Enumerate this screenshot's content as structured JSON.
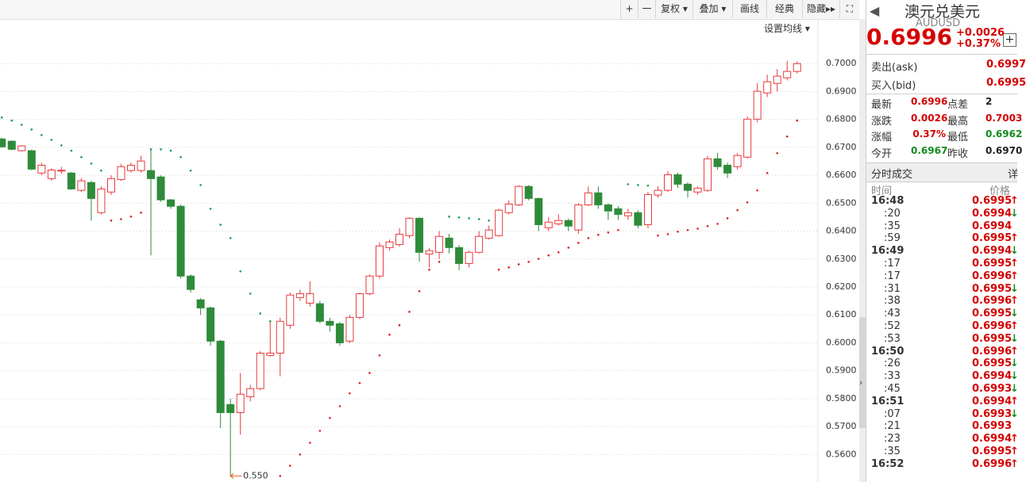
{
  "toolbar": {
    "buttons": [
      "+",
      "一",
      "复权",
      "叠加",
      "画线",
      "经典",
      "隐藏"
    ],
    "ma_setting": "设置均线"
  },
  "chart_data": {
    "type": "candlestick",
    "categories": [
      null,
      null,
      null,
      null,
      null,
      null,
      null,
      null,
      null,
      null,
      null,
      null,
      null,
      null,
      null,
      null,
      null,
      null,
      null,
      null,
      null,
      null,
      null,
      null,
      null,
      null,
      null,
      null,
      null,
      null,
      null,
      null,
      null,
      null,
      null,
      null,
      null,
      null,
      null,
      null,
      null,
      null,
      null,
      null,
      null,
      null,
      null,
      null,
      null,
      null,
      null,
      null,
      null,
      null,
      null,
      null,
      null,
      null,
      null,
      null,
      null,
      null,
      null,
      null,
      null,
      null,
      null,
      null,
      null,
      null,
      null,
      null,
      null,
      null,
      null,
      null,
      null,
      null,
      null,
      null,
      null
    ],
    "open": [
      0.673,
      0.6722,
      0.6688,
      0.6688,
      0.6608,
      0.6588,
      0.6617,
      0.6608,
      0.6546,
      0.6574,
      0.6466,
      0.654,
      0.6585,
      0.6617,
      0.6617,
      0.6617,
      0.6594,
      0.6512,
      0.6489,
      0.6239,
      0.6154,
      0.6125,
      0.6006,
      0.5779,
      0.575,
      0.5807,
      0.5836,
      0.5955,
      0.5963,
      0.6063,
      0.6162,
      0.6142,
      0.614,
      0.6077,
      0.6068,
      0.6006,
      0.6091,
      0.6176,
      0.6239,
      0.6341,
      0.6352,
      0.6384,
      0.6446,
      0.6318,
      0.6324,
      0.6375,
      0.6341,
      0.6284,
      0.6324,
      0.6375,
      0.6384,
      0.6466,
      0.6494,
      0.656,
      0.6517,
      0.6412,
      0.6426,
      0.6438,
      0.6404,
      0.6494,
      0.6537,
      0.6494,
      0.648,
      0.6455,
      0.6466,
      0.6423,
      0.6529,
      0.6546,
      0.6602,
      0.6568,
      0.654,
      0.6546,
      0.6659,
      0.6636,
      0.6631,
      0.6665,
      0.6801,
      0.6895,
      0.6929,
      0.6949,
      0.6972
    ],
    "high": [
      0.6735,
      0.6725,
      0.6708,
      0.6692,
      0.6645,
      0.6625,
      0.663,
      0.6612,
      0.659,
      0.658,
      0.656,
      0.66,
      0.664,
      0.6645,
      0.667,
      0.6696,
      0.66,
      0.6515,
      0.6495,
      0.6245,
      0.616,
      0.613,
      0.601,
      0.58,
      0.5892,
      0.585,
      0.597,
      0.608,
      0.609,
      0.618,
      0.619,
      0.622,
      0.615,
      0.609,
      0.6075,
      0.61,
      0.618,
      0.6245,
      0.636,
      0.637,
      0.641,
      0.645,
      0.645,
      0.634,
      0.64,
      0.639,
      0.635,
      0.633,
      0.64,
      0.642,
      0.648,
      0.651,
      0.6565,
      0.6565,
      0.652,
      0.645,
      0.646,
      0.6445,
      0.65,
      0.656,
      0.656,
      0.65,
      0.649,
      0.648,
      0.6475,
      0.654,
      0.656,
      0.6615,
      0.661,
      0.6575,
      0.656,
      0.667,
      0.668,
      0.6645,
      0.668,
      0.681,
      0.693,
      0.696,
      0.698,
      0.701,
      0.7008
    ],
    "low": [
      0.6698,
      0.669,
      0.6685,
      0.6618,
      0.66,
      0.658,
      0.6605,
      0.6548,
      0.654,
      0.6438,
      0.646,
      0.653,
      0.658,
      0.661,
      0.661,
      0.6313,
      0.6505,
      0.648,
      0.623,
      0.618,
      0.61,
      0.599,
      0.5694,
      0.5523,
      0.5671,
      0.579,
      0.583,
      0.595,
      0.588,
      0.605,
      0.615,
      0.613,
      0.607,
      0.604,
      0.599,
      0.6,
      0.6085,
      0.617,
      0.623,
      0.633,
      0.6345,
      0.6375,
      0.629,
      0.627,
      0.63,
      0.632,
      0.626,
      0.627,
      0.632,
      0.637,
      0.638,
      0.646,
      0.649,
      0.651,
      0.64,
      0.64,
      0.642,
      0.64,
      0.639,
      0.649,
      0.648,
      0.644,
      0.644,
      0.644,
      0.641,
      0.641,
      0.652,
      0.654,
      0.6555,
      0.652,
      0.653,
      0.654,
      0.662,
      0.659,
      0.662,
      0.666,
      0.679,
      0.688,
      0.69,
      0.694,
      0.6965
    ],
    "close": [
      0.6702,
      0.6693,
      0.6705,
      0.6622,
      0.6636,
      0.6619,
      0.6618,
      0.6551,
      0.658,
      0.6517,
      0.6551,
      0.6588,
      0.6631,
      0.6636,
      0.6651,
      0.6588,
      0.6512,
      0.6489,
      0.6239,
      0.6191,
      0.6125,
      0.6006,
      0.575,
      0.575,
      0.5816,
      0.5836,
      0.5963,
      0.5963,
      0.6077,
      0.6171,
      0.6176,
      0.6176,
      0.6077,
      0.6063,
      0.6,
      0.6091,
      0.6176,
      0.6239,
      0.6347,
      0.6361,
      0.6389,
      0.6446,
      0.6324,
      0.633,
      0.6381,
      0.6341,
      0.6284,
      0.6324,
      0.6381,
      0.6404,
      0.6475,
      0.6497,
      0.656,
      0.6517,
      0.6423,
      0.6432,
      0.6438,
      0.6418,
      0.6494,
      0.6537,
      0.6494,
      0.6472,
      0.646,
      0.6466,
      0.6421,
      0.6531,
      0.6546,
      0.6602,
      0.6568,
      0.6546,
      0.6554,
      0.6659,
      0.6631,
      0.6608,
      0.6671,
      0.6801,
      0.6901,
      0.6935,
      0.6955,
      0.6972,
      0.7
    ],
    "sar": [
      0.6807,
      0.6796,
      0.6781,
      0.6764,
      0.6744,
      0.6727,
      0.6707,
      0.6688,
      0.6665,
      0.6642,
      0.6617,
      0.6438,
      0.6443,
      0.6452,
      0.6466,
      0.6693,
      0.6693,
      0.6688,
      0.6665,
      0.6617,
      0.6565,
      0.648,
      0.6423,
      0.6375,
      0.6256,
      0.6176,
      0.6105,
      0.6077,
      0.5523,
      0.556,
      0.56,
      0.5642,
      0.5685,
      0.5731,
      0.5773,
      0.5819,
      0.5856,
      0.5892,
      0.5955,
      0.6029,
      0.6063,
      0.6111,
      0.6185,
      0.6262,
      0.629,
      0.6452,
      0.6449,
      0.6446,
      0.6443,
      0.6438,
      0.6262,
      0.627,
      0.6281,
      0.629,
      0.6301,
      0.6313,
      0.6324,
      0.6341,
      0.6358,
      0.6375,
      0.6387,
      0.6395,
      0.6404,
      0.6568,
      0.6565,
      0.6563,
      0.6384,
      0.6389,
      0.6398,
      0.6404,
      0.6409,
      0.6418,
      0.6426,
      0.6446,
      0.6475,
      0.6503,
      0.6546,
      0.6608,
      0.6679,
      0.6739,
      0.6796
    ],
    "up_color": "#e8393c",
    "down_color": "#2e8b3a",
    "sar_up_color": "#e02020",
    "sar_down_color": "#1f9a50",
    "ylim": [
      0.551,
      0.71
    ],
    "yticks": [
      {
        "value": 0.56,
        "label": "0.5600"
      },
      {
        "value": 0.57,
        "label": "0.5700"
      },
      {
        "value": 0.58,
        "label": "0.5800"
      },
      {
        "value": 0.59,
        "label": "0.5900"
      },
      {
        "value": 0.6,
        "label": "0.6000"
      },
      {
        "value": 0.61,
        "label": "0.6100"
      },
      {
        "value": 0.62,
        "label": "0.6200"
      },
      {
        "value": 0.63,
        "label": "0.6300"
      },
      {
        "value": 0.64,
        "label": "0.6400"
      },
      {
        "value": 0.65,
        "label": "0.6500"
      },
      {
        "value": 0.66,
        "label": "0.6600"
      },
      {
        "value": 0.67,
        "label": "0.6700"
      },
      {
        "value": 0.68,
        "label": "0.6800"
      },
      {
        "value": 0.69,
        "label": "0.6900"
      },
      {
        "value": 0.7,
        "label": "0.7000"
      }
    ],
    "grid": true,
    "annotation": "0.550"
  },
  "quote_panel": {
    "name": "澳元兑美元",
    "symbol": "AUDUSD",
    "price": "0.6996",
    "change": "+0.0026",
    "change_pct": "+0.37%",
    "ask_label": "卖出(ask)",
    "ask": "0.6997",
    "bid_label": "买入(bid)",
    "bid": "0.6995",
    "stats": [
      [
        {
          "label": "最新",
          "value": "0.6996",
          "color": "red"
        },
        {
          "label": "点差",
          "value": "2",
          "color": "black"
        }
      ],
      [
        {
          "label": "涨跌",
          "value": "0.0026",
          "color": "red"
        },
        {
          "label": "最高",
          "value": "0.7003",
          "color": "red"
        }
      ],
      [
        {
          "label": "涨幅",
          "value": "0.37%",
          "color": "red"
        },
        {
          "label": "最低",
          "value": "0.6962",
          "color": "green"
        }
      ],
      [
        {
          "label": "今开",
          "value": "0.6967",
          "color": "green"
        },
        {
          "label": "昨收",
          "value": "0.6970",
          "color": "black"
        }
      ]
    ],
    "trades_title": "分时成交",
    "trades_more": "详",
    "time_header": "时间",
    "price_header": "价格",
    "trades": [
      {
        "time": "16:48",
        "price": "0.6995",
        "dir": "↑"
      },
      {
        "time": ":20",
        "price": "0.6994",
        "dir": "↓"
      },
      {
        "time": ":35",
        "price": "0.6994"
      },
      {
        "time": ":59",
        "price": "0.6995",
        "dir": "↑"
      },
      {
        "time": "16:49",
        "price": "0.6994",
        "dir": "↓"
      },
      {
        "time": ":17",
        "price": "0.6995",
        "dir": "↑"
      },
      {
        "time": ":17",
        "price": "0.6996",
        "dir": "↑"
      },
      {
        "time": ":31",
        "price": "0.6995",
        "dir": "↓"
      },
      {
        "time": ":38",
        "price": "0.6996",
        "dir": "↑"
      },
      {
        "time": ":43",
        "price": "0.6995",
        "dir": "↓"
      },
      {
        "time": ":52",
        "price": "0.6996",
        "dir": "↑"
      },
      {
        "time": ":53",
        "price": "0.6995",
        "dir": "↓"
      },
      {
        "time": "16:50",
        "price": "0.6996",
        "dir": "↑"
      },
      {
        "time": ":26",
        "price": "0.6995",
        "dir": "↓"
      },
      {
        "time": ":33",
        "price": "0.6994",
        "dir": "↓"
      },
      {
        "time": ":45",
        "price": "0.6993",
        "dir": "↓"
      },
      {
        "time": "16:51",
        "price": "0.6994",
        "dir": "↑"
      },
      {
        "time": ":07",
        "price": "0.6993",
        "dir": "↓"
      },
      {
        "time": ":21",
        "price": "0.6993"
      },
      {
        "time": ":23",
        "price": "0.6994",
        "dir": "↑"
      },
      {
        "time": ":35",
        "price": "0.6995",
        "dir": "↑"
      },
      {
        "time": "16:52",
        "price": "0.6996",
        "dir": "↑"
      }
    ]
  }
}
